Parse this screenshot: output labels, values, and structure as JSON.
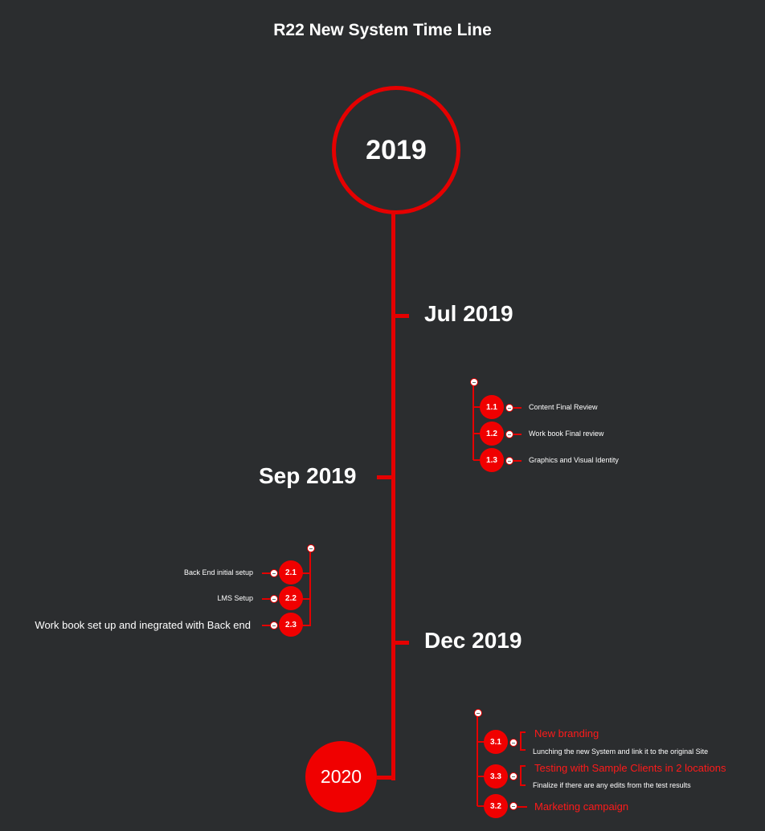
{
  "title": "R22 New System Time Line",
  "years": {
    "start": "2019",
    "end": "2020"
  },
  "months": {
    "jul": "Jul 2019",
    "sep": "Sep 2019",
    "dec": "Dec 2019"
  },
  "group1": [
    {
      "id": "1.1",
      "label": "Content Final Review"
    },
    {
      "id": "1.2",
      "label": "Work book Final review"
    },
    {
      "id": "1.3",
      "label": "Graphics and Visual Identity"
    }
  ],
  "group2": [
    {
      "id": "2.1",
      "label": "Back End initial setup"
    },
    {
      "id": "2.2",
      "label": "LMS Setup"
    },
    {
      "id": "2.3",
      "label": "Work book set up and inegrated with Back end"
    }
  ],
  "group3": [
    {
      "id": "3.1",
      "label": "New branding",
      "note": "Lunching the new System and link it to the original Site"
    },
    {
      "id": "3.3",
      "label": "Testing with Sample Clients in 2 locations",
      "note": "Finalize if there are any edits from the test  results"
    },
    {
      "id": "3.2",
      "label": "Marketing campaign"
    }
  ],
  "colors": {
    "background": "#2b2d2f",
    "accent": "#e50000",
    "node": "#f00000"
  }
}
